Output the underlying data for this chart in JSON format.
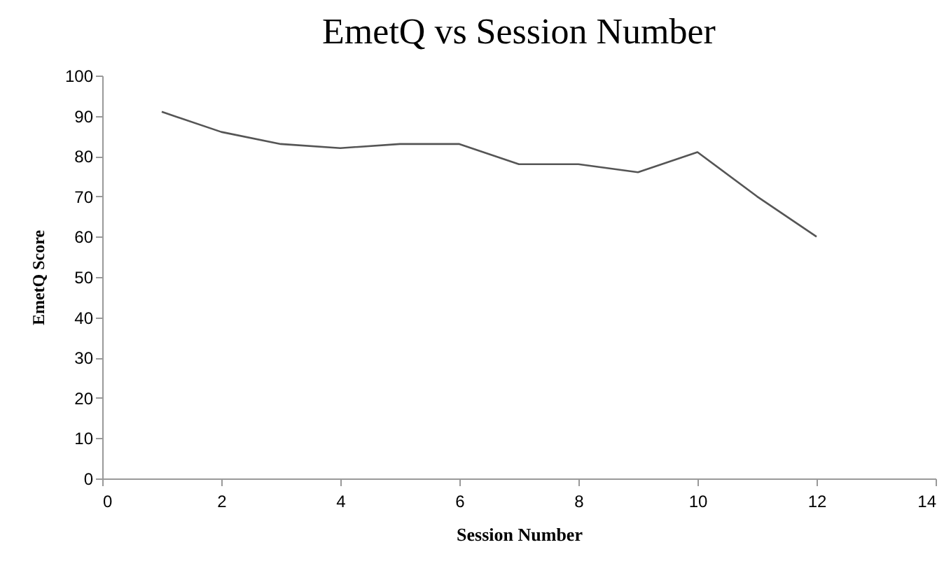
{
  "chart_data": {
    "type": "line",
    "title": "EmetQ vs Session Number",
    "xlabel": "Session Number",
    "ylabel": "EmetQ Score",
    "x": [
      1,
      2,
      3,
      4,
      5,
      6,
      7,
      8,
      9,
      10,
      11,
      12
    ],
    "series": [
      {
        "color": "#555555",
        "values": [
          91,
          86,
          83,
          82,
          83,
          83,
          78,
          78,
          76,
          81,
          70,
          60
        ]
      }
    ],
    "xlim": [
      0,
      14
    ],
    "xticks": [
      0,
      2,
      4,
      6,
      8,
      10,
      12,
      14
    ],
    "ylim": [
      0,
      100
    ],
    "yticks": [
      0,
      10,
      20,
      30,
      40,
      50,
      60,
      70,
      80,
      90,
      100
    ],
    "grid": false,
    "legend": false,
    "marker": "none",
    "line_style": "solid"
  }
}
